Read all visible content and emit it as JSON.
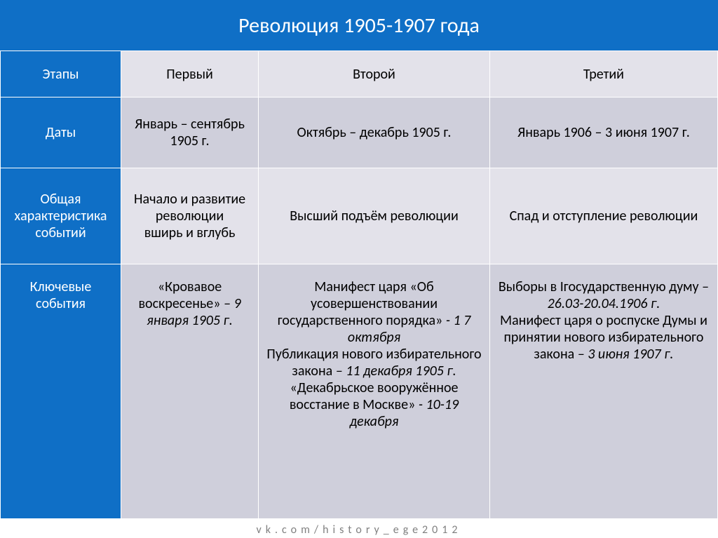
{
  "colors": {
    "header_bg": "#0f6fc6",
    "header_text": "#ffffff",
    "rowheader_bg": "#0f6fc6",
    "rowheader_text": "#ffffff",
    "cell_even_bg": "#e3e2ea",
    "cell_odd_bg": "#cfcfdb",
    "cell_text": "#000000",
    "footer_text": "#808080"
  },
  "fonts": {
    "title_size": 30,
    "cell_size": 20,
    "footer_size": 16
  },
  "title": "Революция 1905-1907 года",
  "rows": {
    "stages": {
      "label": "Этапы",
      "c1": "Первый",
      "c2": "Второй",
      "c3": "Третий"
    },
    "dates": {
      "label": "Даты",
      "c1": "Январь – сентябрь 1905 г.",
      "c2": "Октябрь – декабрь 1905 г.",
      "c3": "Январь 1906 – 3 июня 1907 г."
    },
    "char": {
      "label": "Общая характеристика событий",
      "c1": "Начало и развитие революции\nвширь и вглубь",
      "c2": "Высший подъём революции",
      "c3": "Спад и отступление революции"
    },
    "key": {
      "label": "Ключевые события",
      "c1": "«Кровавое воскресенье» – 9 января 1905 г.",
      "c2": "Манифест царя «Об усовершенствовании государственного порядка» - 1 7 октября\nПубликация нового избирательного закона – 11 декабря 1905 г.\n«Декабрьское вооружённое восстание в Москве» - 10-19 декабря",
      "c3": "Выборы в Iгосударственную думу – 26.03-20.04.1906 г.\nМанифест царя о роспуске Думы и принятии нового избирательного закона – 3 июня 1907 г."
    }
  },
  "footer": "vk.com/history_ege2012"
}
